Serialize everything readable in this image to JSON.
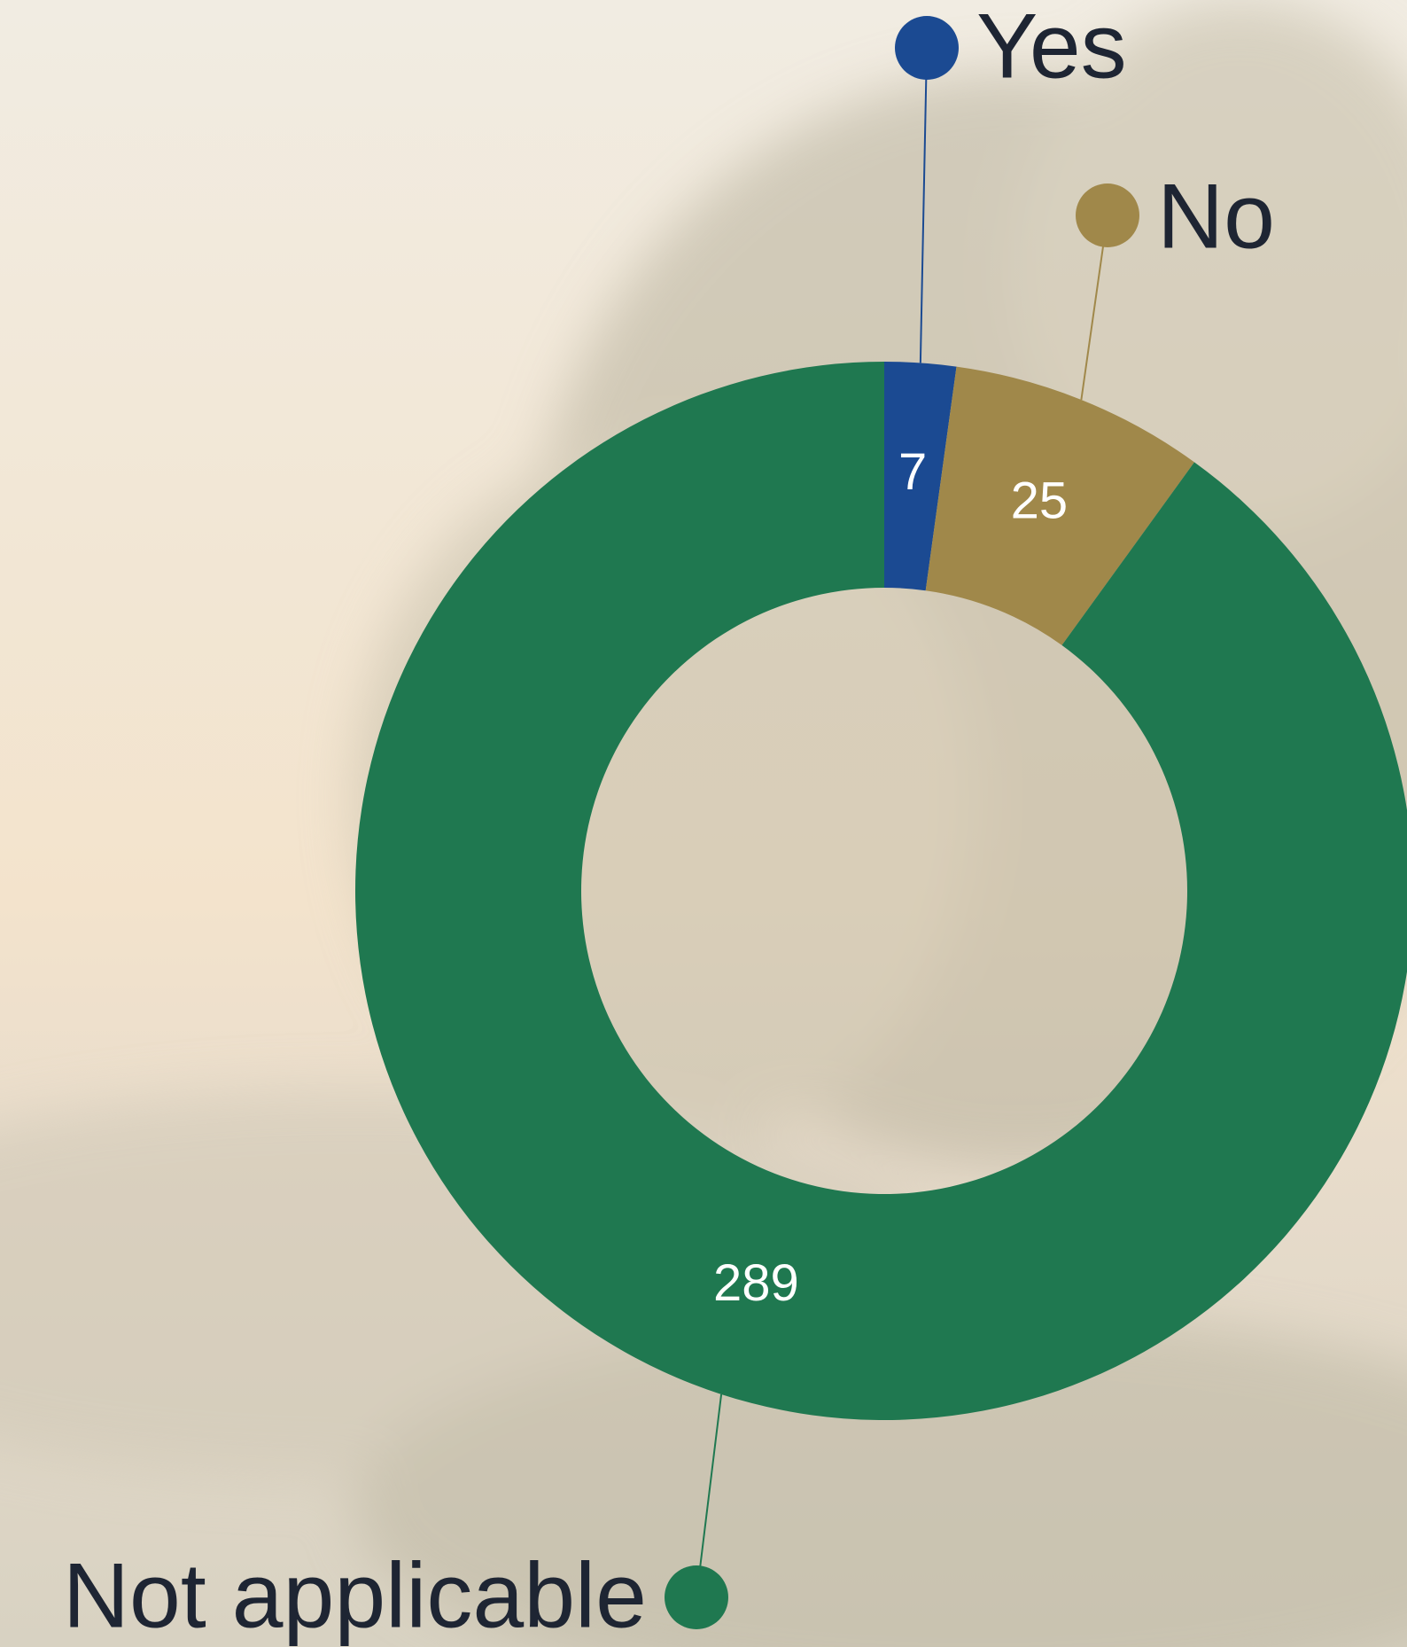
{
  "chart_data": {
    "type": "donut",
    "categories": [
      "Yes",
      "No",
      "Not applicable"
    ],
    "values": [
      7,
      25,
      289
    ],
    "colors": [
      "#1b4a92",
      "#a0884a",
      "#1f7850"
    ]
  }
}
